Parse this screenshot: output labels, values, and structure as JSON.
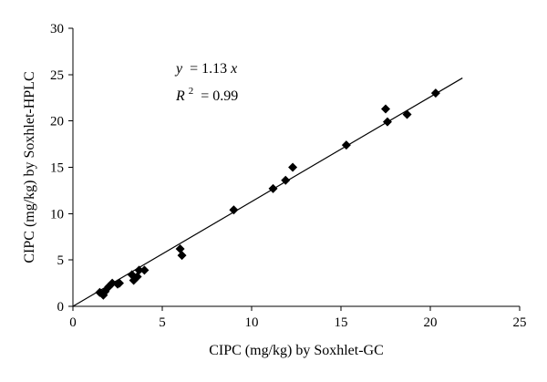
{
  "chart_data": {
    "type": "scatter",
    "xlabel": "CIPC (mg/kg) by Soxhlet-GC",
    "ylabel": "CIPC (mg/kg) by Soxhlet-HPLC",
    "xlim": [
      0,
      25
    ],
    "ylim": [
      0,
      30
    ],
    "xticks": [
      "0",
      "5",
      "10",
      "15",
      "20",
      "25"
    ],
    "yticks": [
      "0",
      "5",
      "10",
      "15",
      "20",
      "25",
      "30"
    ],
    "grid": false,
    "legend": "none",
    "annotations": {
      "equation": {
        "lhs": "y",
        "rhs": "= 1.13",
        "var": "x"
      },
      "r2": {
        "symbol": "R",
        "exponent": "2",
        "value": "= 0.99"
      }
    },
    "fit": {
      "slope": 1.13,
      "x_range": [
        0,
        21.8
      ]
    },
    "points": [
      {
        "x": 1.5,
        "y": 1.5
      },
      {
        "x": 1.7,
        "y": 1.2
      },
      {
        "x": 1.8,
        "y": 1.6
      },
      {
        "x": 2.0,
        "y": 2.1
      },
      {
        "x": 2.2,
        "y": 2.5
      },
      {
        "x": 2.5,
        "y": 2.4
      },
      {
        "x": 2.6,
        "y": 2.5
      },
      {
        "x": 3.3,
        "y": 3.4
      },
      {
        "x": 3.4,
        "y": 2.8
      },
      {
        "x": 3.6,
        "y": 3.2
      },
      {
        "x": 3.7,
        "y": 3.9
      },
      {
        "x": 4.0,
        "y": 3.9
      },
      {
        "x": 6.0,
        "y": 6.2
      },
      {
        "x": 6.1,
        "y": 5.5
      },
      {
        "x": 9.0,
        "y": 10.4
      },
      {
        "x": 11.2,
        "y": 12.7
      },
      {
        "x": 11.9,
        "y": 13.6
      },
      {
        "x": 12.3,
        "y": 15.0
      },
      {
        "x": 15.3,
        "y": 17.4
      },
      {
        "x": 17.5,
        "y": 21.3
      },
      {
        "x": 17.6,
        "y": 19.9
      },
      {
        "x": 18.7,
        "y": 20.7
      },
      {
        "x": 20.3,
        "y": 23.0
      }
    ],
    "colors": {
      "marker": "#000000",
      "line": "#000000"
    }
  }
}
